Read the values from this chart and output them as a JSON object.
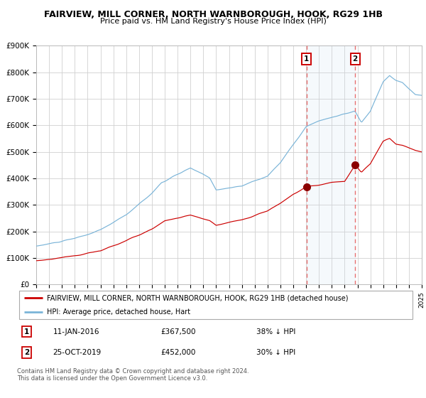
{
  "title": "FAIRVIEW, MILL CORNER, NORTH WARNBOROUGH, HOOK, RG29 1HB",
  "subtitle": "Price paid vs. HM Land Registry's House Price Index (HPI)",
  "legend_red": "FAIRVIEW, MILL CORNER, NORTH WARNBOROUGH, HOOK, RG29 1HB (detached house)",
  "legend_blue": "HPI: Average price, detached house, Hart",
  "transaction1_date": "11-JAN-2016",
  "transaction1_price": 367500,
  "transaction2_date": "25-OCT-2019",
  "transaction2_price": 452000,
  "transaction1_pct": "38% ↓ HPI",
  "transaction2_pct": "30% ↓ HPI",
  "footer1": "Contains HM Land Registry data © Crown copyright and database right 2024.",
  "footer2": "This data is licensed under the Open Government Licence v3.0.",
  "ylabel_ticks": [
    "£0",
    "£100K",
    "£200K",
    "£300K",
    "£400K",
    "£500K",
    "£600K",
    "£700K",
    "£800K",
    "£900K"
  ],
  "ytick_vals": [
    0,
    100000,
    200000,
    300000,
    400000,
    500000,
    600000,
    700000,
    800000,
    900000
  ],
  "ymax": 900000,
  "blue_line_color": "#7ab4d8",
  "red_line_color": "#cc0000",
  "marker_color": "#8b0000",
  "vline_color": "#e87070",
  "shade_color": "#cce0f0"
}
